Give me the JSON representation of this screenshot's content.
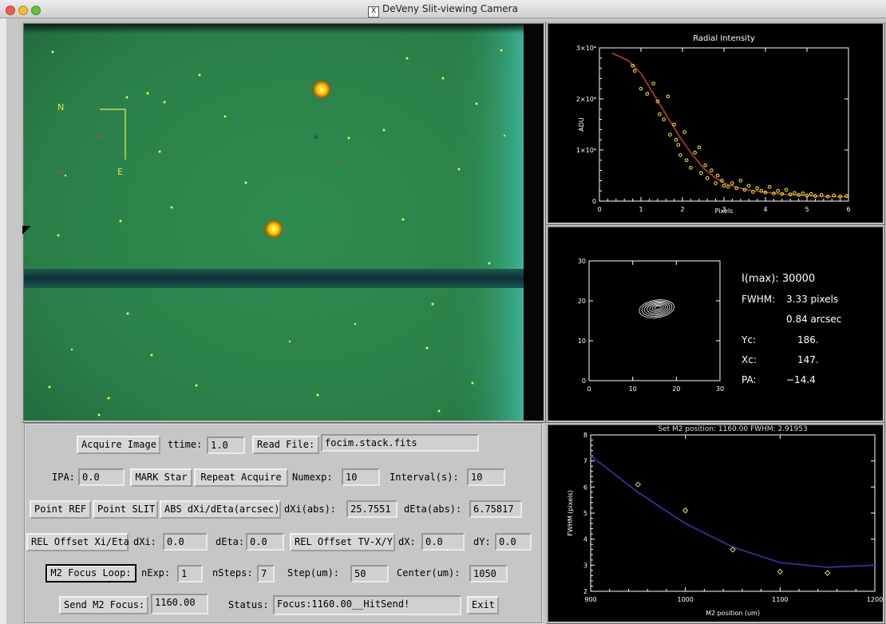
{
  "window": {
    "title": "DeVeny Slit-viewing Camera",
    "icon": "x11-icon"
  },
  "image_panel": {
    "compass": {
      "north": "N",
      "east": "E"
    }
  },
  "controls": {
    "acquire_image": "Acquire Image",
    "ttime_label": "ttime:",
    "ttime_value": "1.0",
    "read_file": "Read File:",
    "read_file_value": "focim.stack.fits",
    "ipa_label": "IPA:",
    "ipa_value": "0.0",
    "mark_star": "MARK Star",
    "repeat_acquire": "Repeat Acquire",
    "numexp_label": "Numexp:",
    "numexp_value": "10",
    "interval_label": "Interval(s):",
    "interval_value": "10",
    "point_ref": "Point REF",
    "point_slit": "Point SLIT",
    "abs_dxi_deta": "ABS dXi/dEta(arcsec)",
    "dxi_abs_label": "dXi(abs):",
    "dxi_abs_value": "25.7551",
    "deta_abs_label": "dEta(abs):",
    "deta_abs_value": "6.75817",
    "rel_offset_xi_eta": "REL Offset Xi/Eta",
    "dxi_label": "dXi:",
    "dxi_value": "0.0",
    "deta_label": "dEta:",
    "deta_value": "0.0",
    "rel_offset_tv": "REL Offset TV-X/Y",
    "dx_label": "dX:",
    "dx_value": "0.0",
    "dy_label": "dY:",
    "dy_value": "0.0",
    "m2_focus_loop": "M2 Focus Loop:",
    "nexp_label": "nExp:",
    "nexp_value": "1",
    "nsteps_label": "nSteps:",
    "nsteps_value": "7",
    "step_label": "Step(um):",
    "step_value": "50",
    "center_label": "Center(um):",
    "center_value": "1050",
    "send_m2_focus": "Send M2 Focus:",
    "send_m2_value": "1160.00",
    "status_label": "Status:",
    "status_value": "Focus:1160.00__HitSend!",
    "exit": "Exit"
  },
  "contour_info": {
    "imax": "I(max): 30000",
    "fwhm_label": "FWHM:",
    "fwhm_pixels": "3.33 pixels",
    "fwhm_arcsec": "0.84 arcsec",
    "yc_label": "Yc:",
    "yc_value": "186.",
    "xc_label": "Xc:",
    "xc_value": "147.",
    "pa_label": "PA:",
    "pa_value": "−14.4"
  },
  "chart_data": [
    {
      "type": "scatter",
      "title": "Radial Intensity",
      "xlabel": "Pixels",
      "ylabel": "ADU",
      "xlim": [
        0,
        6
      ],
      "ylim": [
        0,
        30000
      ],
      "x_ticks": [
        "0",
        "1",
        "2",
        "3",
        "4",
        "5",
        "6"
      ],
      "y_ticks": [
        "0",
        "1×10⁴",
        "2×10⁴",
        "3×10⁴"
      ],
      "points_color": "#ffff00",
      "fit_color": "#c0392b",
      "points": [
        [
          0.8,
          26500
        ],
        [
          0.85,
          25500
        ],
        [
          1.0,
          22000
        ],
        [
          1.15,
          21000
        ],
        [
          1.3,
          23000
        ],
        [
          1.4,
          19500
        ],
        [
          1.45,
          17000
        ],
        [
          1.55,
          16000
        ],
        [
          1.65,
          20500
        ],
        [
          1.7,
          13000
        ],
        [
          1.8,
          15000
        ],
        [
          1.85,
          12000
        ],
        [
          1.9,
          11000
        ],
        [
          1.95,
          9000
        ],
        [
          2.05,
          13500
        ],
        [
          2.1,
          8000
        ],
        [
          2.2,
          6500
        ],
        [
          2.3,
          9500
        ],
        [
          2.4,
          10500
        ],
        [
          2.45,
          5500
        ],
        [
          2.55,
          7000
        ],
        [
          2.6,
          4500
        ],
        [
          2.7,
          6000
        ],
        [
          2.8,
          3500
        ],
        [
          2.85,
          5000
        ],
        [
          2.95,
          4000
        ],
        [
          3.0,
          3000
        ],
        [
          3.1,
          2800
        ],
        [
          3.2,
          3500
        ],
        [
          3.3,
          2500
        ],
        [
          3.4,
          4000
        ],
        [
          3.5,
          2200
        ],
        [
          3.6,
          3000
        ],
        [
          3.7,
          1800
        ],
        [
          3.8,
          2500
        ],
        [
          3.9,
          2000
        ],
        [
          4.0,
          1700
        ],
        [
          4.1,
          2800
        ],
        [
          4.2,
          1500
        ],
        [
          4.3,
          2000
        ],
        [
          4.4,
          1400
        ],
        [
          4.5,
          2200
        ],
        [
          4.6,
          1300
        ],
        [
          4.7,
          1600
        ],
        [
          4.8,
          1200
        ],
        [
          4.9,
          1500
        ],
        [
          5.0,
          1100
        ],
        [
          5.1,
          1400
        ],
        [
          5.2,
          1000
        ],
        [
          5.35,
          1200
        ],
        [
          5.5,
          900
        ],
        [
          5.65,
          1100
        ],
        [
          5.8,
          900
        ],
        [
          5.95,
          1000
        ]
      ],
      "fit": [
        [
          0.3,
          29000
        ],
        [
          0.7,
          27500
        ],
        [
          1.0,
          25000
        ],
        [
          1.3,
          21000
        ],
        [
          1.6,
          17000
        ],
        [
          1.9,
          13000
        ],
        [
          2.2,
          9500
        ],
        [
          2.5,
          6500
        ],
        [
          2.8,
          4500
        ],
        [
          3.1,
          3200
        ],
        [
          3.5,
          2300
        ],
        [
          4.0,
          1700
        ],
        [
          4.5,
          1300
        ],
        [
          5.0,
          1050
        ],
        [
          5.5,
          900
        ],
        [
          6.0,
          850
        ]
      ]
    },
    {
      "type": "contour",
      "xlim": [
        0,
        30
      ],
      "ylim": [
        0,
        30
      ],
      "x_ticks": [
        "0",
        "10",
        "20",
        "30"
      ],
      "y_ticks": [
        "0",
        "10",
        "20",
        "30"
      ],
      "center": [
        15.5,
        18
      ]
    },
    {
      "type": "scatter",
      "title": "Set M2 position: 1160.00   FWHM: 2.91953",
      "xlabel": "M2 position (um)",
      "ylabel": "FWHM (pixels)",
      "xlim": [
        900,
        1200
      ],
      "ylim": [
        2,
        8
      ],
      "x_ticks": [
        "900",
        "1000",
        "1100",
        "1200"
      ],
      "y_ticks": [
        "2",
        "3",
        "4",
        "5",
        "6",
        "7",
        "8"
      ],
      "points_color": "#e1e14a",
      "fit_color": "#4b2ab8",
      "points": [
        [
          950,
          6.1
        ],
        [
          1000,
          5.1
        ],
        [
          1050,
          3.6
        ],
        [
          1100,
          2.75
        ],
        [
          1150,
          2.7
        ]
      ],
      "fit": [
        [
          900,
          7.2
        ],
        [
          950,
          5.8
        ],
        [
          1000,
          4.6
        ],
        [
          1050,
          3.7
        ],
        [
          1100,
          3.1
        ],
        [
          1150,
          2.92
        ],
        [
          1200,
          3.0
        ]
      ]
    }
  ]
}
